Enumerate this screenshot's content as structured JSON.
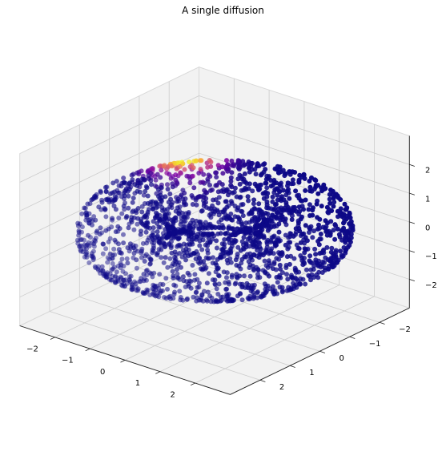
{
  "chart_data": {
    "type": "scatter",
    "projection": "3d",
    "title": "A single diffusion",
    "surface": "torus",
    "torus": {
      "major_radius": 2,
      "minor_radius": 1
    },
    "num_points": 2000,
    "colormap": "plasma",
    "diffusion_source": {
      "x": -2,
      "y": -1.4,
      "z": 0.8
    },
    "axes": {
      "x": {
        "lim": [
          -3,
          3
        ],
        "ticks": [
          -2,
          -1,
          0,
          1,
          2
        ]
      },
      "y": {
        "lim": [
          -3,
          3
        ],
        "ticks": [
          -2,
          -1,
          0,
          1,
          2
        ]
      },
      "z": {
        "lim": [
          -3,
          3
        ],
        "ticks": [
          -2,
          -1,
          0,
          1,
          2
        ]
      }
    },
    "grid": true,
    "legend": "none",
    "colors": {
      "low": "#0d0887",
      "mid": "#9c179e",
      "high": "#f0f921",
      "pane": "#f2f2f2"
    }
  }
}
